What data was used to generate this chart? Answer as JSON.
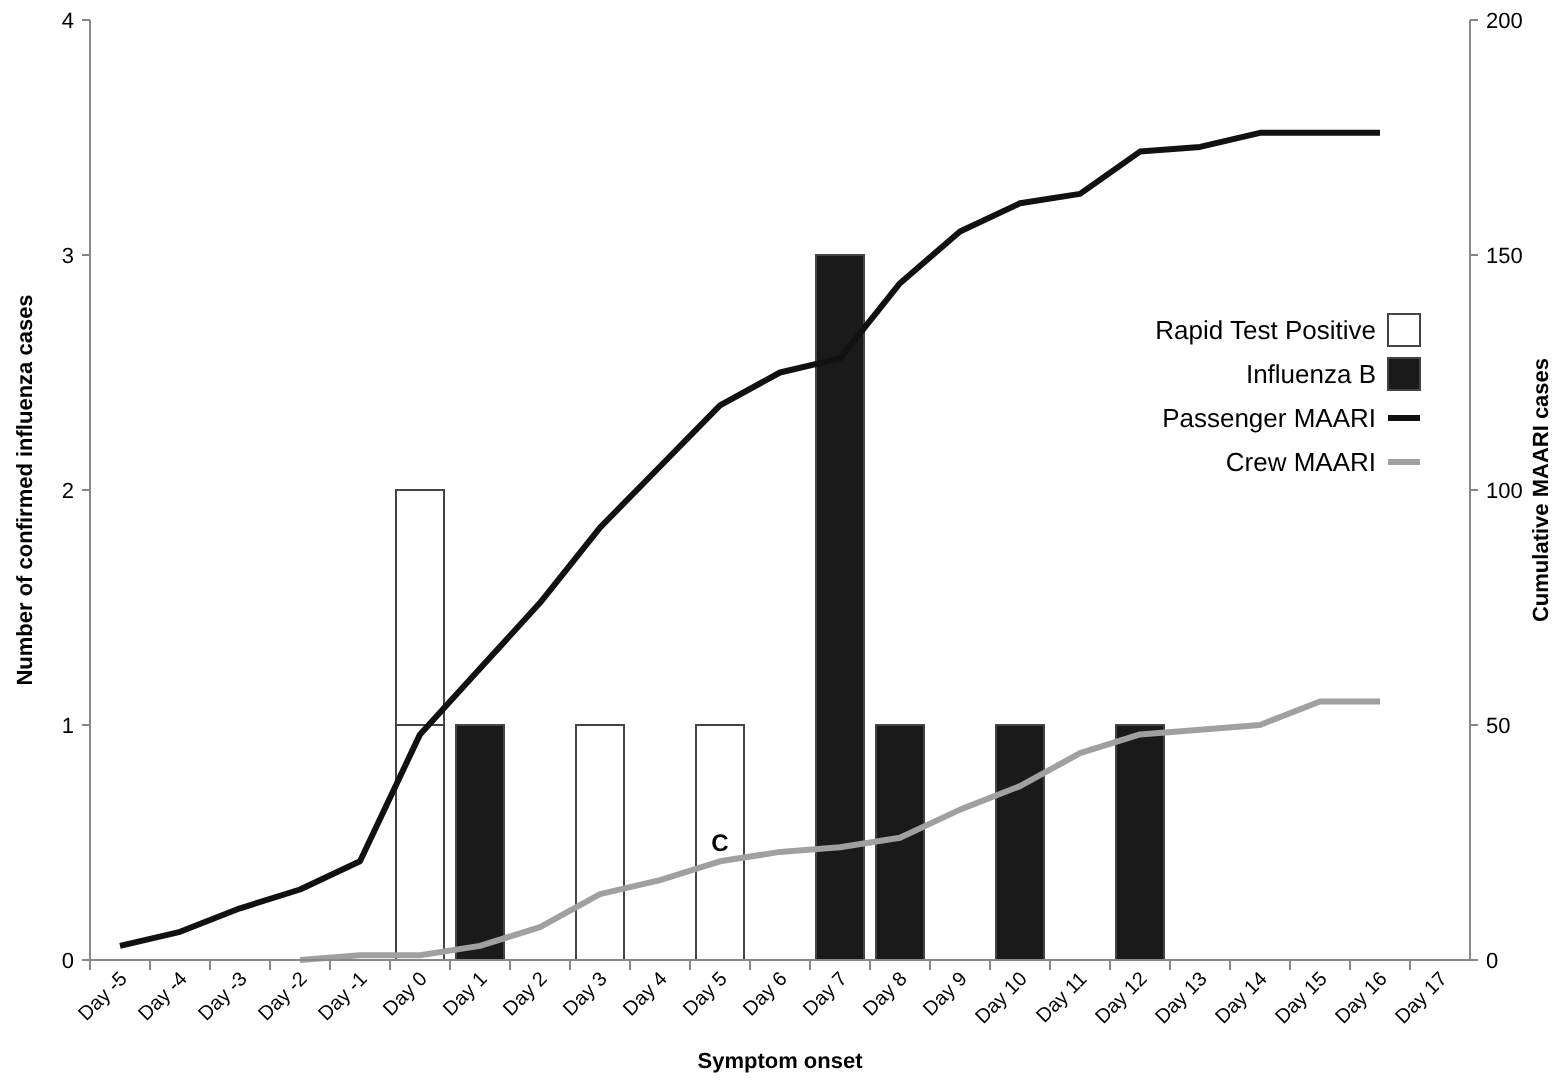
{
  "chart_data": {
    "type": "bar",
    "stacked": true,
    "xlabel": "Symptom onset",
    "ylabel": "Number of confirmed influenza cases",
    "y2label": "Cumulative MAARI cases",
    "categories": [
      "Day -5",
      "Day -4",
      "Day -3",
      "Day -2",
      "Day -1",
      "Day 0",
      "Day 1",
      "Day 2",
      "Day 3",
      "Day 4",
      "Day 5",
      "Day 6",
      "Day 7",
      "Day 8",
      "Day 9",
      "Day 10",
      "Day 11",
      "Day 12",
      "Day 13",
      "Day 14",
      "Day 15",
      "Day 16",
      "Day 17"
    ],
    "ylim": [
      0,
      4
    ],
    "yticks": [
      0,
      1,
      2,
      3,
      4
    ],
    "y2lim": [
      0,
      200
    ],
    "y2ticks": [
      0,
      50,
      100,
      150,
      200
    ],
    "grid": false,
    "legend": "right",
    "series": [
      {
        "name": "Rapid Test Positive",
        "color": "#ffffff",
        "values": [
          null,
          null,
          null,
          null,
          null,
          1,
          null,
          null,
          1,
          null,
          1,
          null,
          null,
          null,
          null,
          null,
          null,
          null,
          null,
          null,
          null,
          null,
          null
        ]
      },
      {
        "color": "#ffffff",
        "values": [
          null,
          null,
          null,
          null,
          null,
          1,
          null,
          null,
          null,
          null,
          null,
          null,
          null,
          null,
          null,
          null,
          null,
          null,
          null,
          null,
          null,
          null,
          null
        ]
      },
      {
        "name": "Influenza B",
        "color": "#1a1a1a",
        "values": [
          null,
          null,
          null,
          null,
          null,
          null,
          1,
          null,
          null,
          null,
          null,
          null,
          3,
          1,
          null,
          1,
          null,
          1,
          null,
          null,
          null,
          null,
          null
        ]
      },
      {
        "name": "Passenger MAARI",
        "type": "line",
        "axis": "y2",
        "color": "#111111",
        "values": [
          3,
          6,
          11,
          15,
          21,
          48,
          62,
          76,
          92,
          105,
          118,
          125,
          128,
          144,
          155,
          161,
          163,
          172,
          173,
          176,
          176,
          176,
          null
        ]
      },
      {
        "name": "Crew MAARI",
        "type": "line",
        "axis": "y2",
        "color": "#a0a0a0",
        "values": [
          null,
          null,
          null,
          0,
          1,
          1,
          3,
          7,
          14,
          17,
          21,
          23,
          24,
          26,
          32,
          37,
          44,
          48,
          49,
          50,
          55,
          55,
          null
        ]
      }
    ],
    "annotations": [
      "C"
    ]
  }
}
